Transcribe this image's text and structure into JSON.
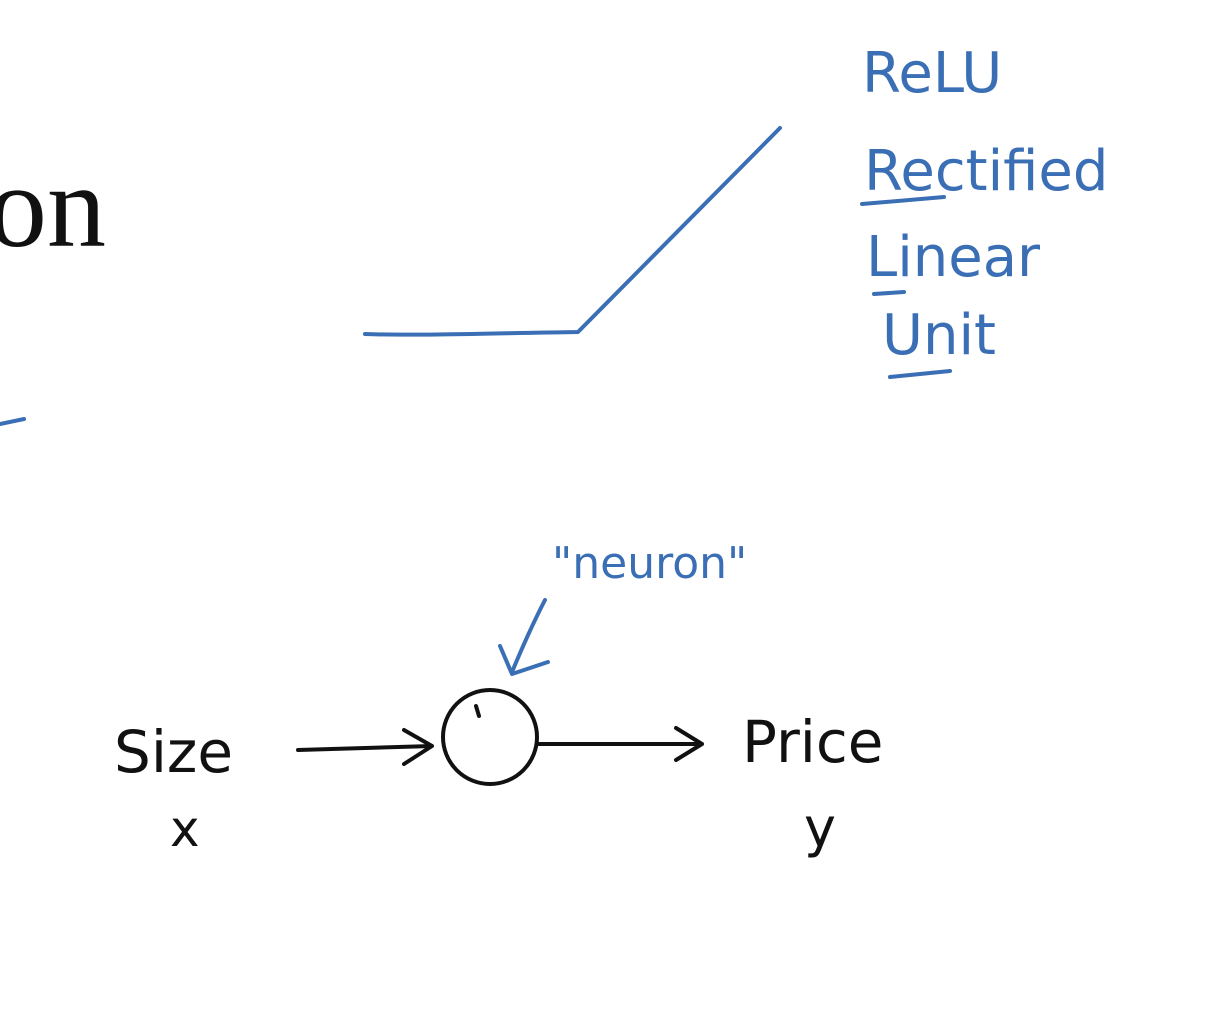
{
  "colors": {
    "blue_ink": "#3b6fb5",
    "black_ink": "#111111",
    "background": "#ffffff"
  },
  "slide": {
    "title_fragment": "on"
  },
  "relu_note": {
    "title": "ReLU",
    "line1": "Rectified",
    "line2": "Linear",
    "line3": "Unit"
  },
  "neuron_diagram": {
    "neuron_label": "\"neuron\"",
    "input_label": "Size",
    "input_symbol": "x",
    "output_label": "Price",
    "output_symbol": "y"
  }
}
